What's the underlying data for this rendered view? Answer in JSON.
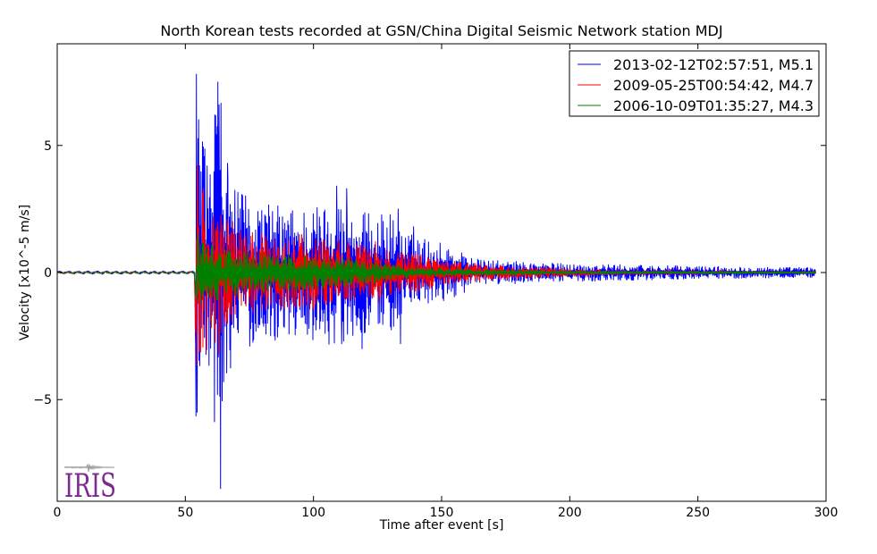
{
  "chart_data": {
    "type": "line",
    "title": "North Korean tests recorded at GSN/China Digital Seismic Network station MDJ",
    "xlabel": "Time after event [s]",
    "ylabel": "Velocity [x10^-5 m/s]",
    "xlim": [
      0,
      300
    ],
    "ylim": [
      -9,
      9
    ],
    "xticks": [
      0,
      50,
      100,
      150,
      200,
      250,
      300
    ],
    "yticks": [
      -5,
      0,
      5
    ],
    "ytick_labels": [
      "−5",
      "0",
      "5"
    ],
    "grid": false,
    "legend_position": "top-right",
    "series": [
      {
        "name": "2013-02-12T02:57:51, M5.1",
        "color": "#0000ff",
        "onset": 54,
        "envelope": [
          [
            0,
            0.08
          ],
          [
            53.5,
            0.08
          ],
          [
            54,
            7.8
          ],
          [
            56,
            5.5
          ],
          [
            60,
            4.5
          ],
          [
            63,
            8.5
          ],
          [
            65,
            4.5
          ],
          [
            70,
            3.2
          ],
          [
            80,
            2.8
          ],
          [
            90,
            2.6
          ],
          [
            100,
            2.7
          ],
          [
            110,
            2.9
          ],
          [
            115,
            2.5
          ],
          [
            125,
            2.3
          ],
          [
            130,
            2.4
          ],
          [
            135,
            1.6
          ],
          [
            150,
            1.2
          ],
          [
            165,
            0.5
          ],
          [
            200,
            0.35
          ],
          [
            250,
            0.25
          ],
          [
            295,
            0.2
          ]
        ],
        "peaks": [
          [
            54.3,
            7.8
          ],
          [
            54.6,
            -5.5
          ],
          [
            55.5,
            4.2
          ],
          [
            61.5,
            6.2
          ],
          [
            62.5,
            -4.8
          ],
          [
            63.2,
            6.6
          ],
          [
            63.8,
            -8.5
          ],
          [
            65,
            -4.3
          ],
          [
            66.5,
            4.3
          ],
          [
            109,
            3.4
          ],
          [
            111,
            -2.8
          ],
          [
            113,
            3.3
          ],
          [
            119,
            -3.0
          ],
          [
            133,
            2.5
          ],
          [
            134,
            -2.8
          ],
          [
            139,
            1.8
          ]
        ]
      },
      {
        "name": "2009-05-25T00:54:42, M4.7",
        "color": "#ff0000",
        "onset": 54,
        "envelope": [
          [
            0,
            0.05
          ],
          [
            53.5,
            0.05
          ],
          [
            54,
            4.2
          ],
          [
            56,
            3.5
          ],
          [
            60,
            2.8
          ],
          [
            63,
            3.0
          ],
          [
            66,
            2.2
          ],
          [
            75,
            1.6
          ],
          [
            90,
            1.5
          ],
          [
            100,
            1.5
          ],
          [
            110,
            1.3
          ],
          [
            120,
            1.1
          ],
          [
            125,
            1.4
          ],
          [
            130,
            0.9
          ],
          [
            140,
            0.8
          ],
          [
            150,
            0.5
          ],
          [
            170,
            0.3
          ],
          [
            200,
            0.15
          ],
          [
            220,
            0.08
          ],
          [
            295,
            0.04
          ]
        ],
        "peaks": [
          [
            54.8,
            4.2
          ],
          [
            55.5,
            -3.1
          ],
          [
            57,
            3.3
          ],
          [
            63,
            -3.2
          ]
        ]
      },
      {
        "name": "2006-10-09T01:35:27, M4.3",
        "color": "#008000",
        "onset": 54,
        "envelope": [
          [
            0,
            0.04
          ],
          [
            53.5,
            0.04
          ],
          [
            54,
            1.6
          ],
          [
            58,
            1.2
          ],
          [
            65,
            1.0
          ],
          [
            80,
            0.8
          ],
          [
            100,
            0.7
          ],
          [
            120,
            0.5
          ],
          [
            130,
            0.3
          ],
          [
            150,
            0.15
          ],
          [
            200,
            0.06
          ],
          [
            295,
            0.04
          ]
        ],
        "peaks": [
          [
            55,
            1.5
          ],
          [
            56,
            -1.2
          ]
        ]
      }
    ]
  },
  "logo": {
    "name": "iris-logo",
    "text": "IRIS",
    "color": "#7d2a8f"
  }
}
